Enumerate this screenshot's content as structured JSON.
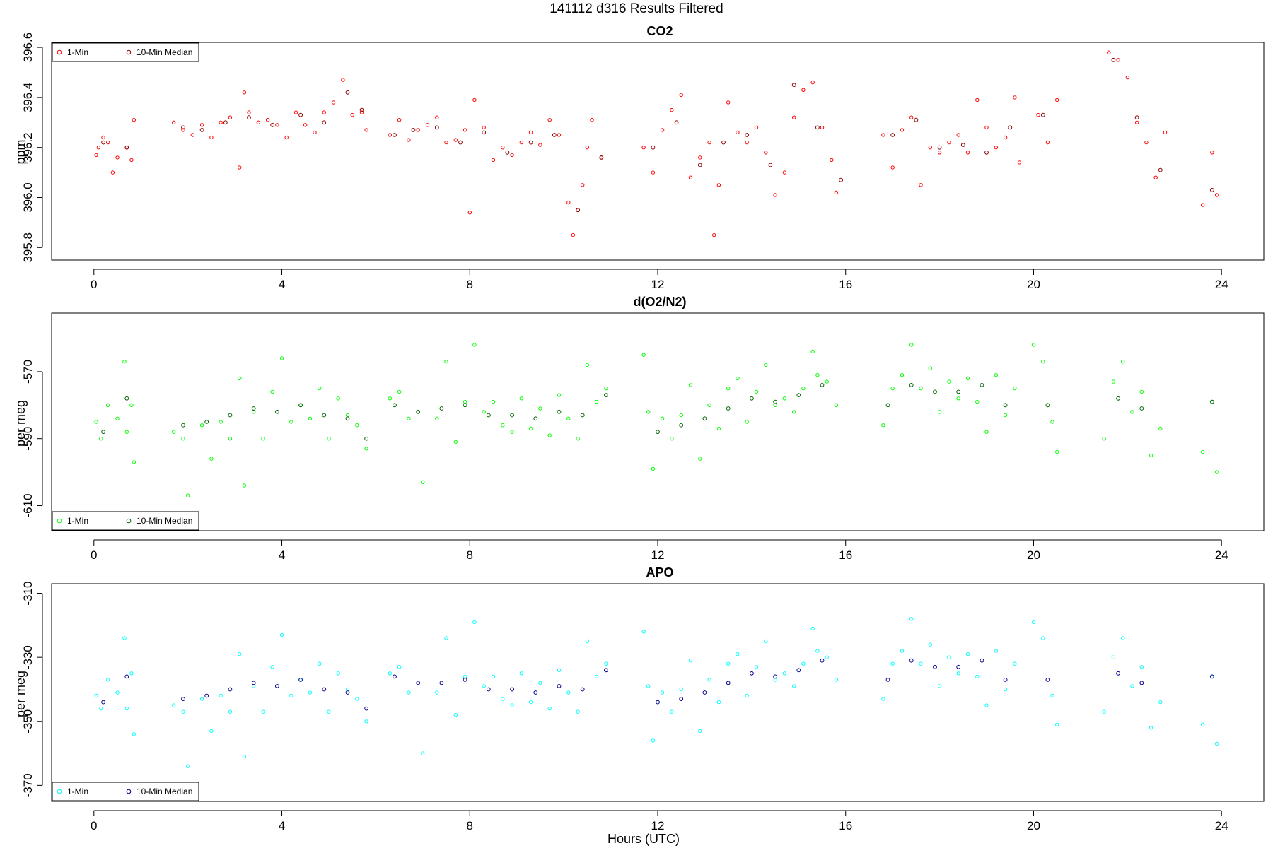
{
  "figure": {
    "title": "141112   d316   Results Filtered",
    "xlabel": "Hours (UTC)"
  },
  "chart_data": [
    {
      "type": "scatter",
      "title": "CO2",
      "xlabel": "",
      "ylabel": "ppm",
      "xlim": [
        -0.9,
        24.9
      ],
      "ylim": [
        395.75,
        396.62
      ],
      "xticks": [
        "0",
        "4",
        "8",
        "12",
        "16",
        "20",
        "24"
      ],
      "yticks": [
        "395.8",
        "396.0",
        "396.2",
        "396.4",
        "396.6"
      ],
      "legend_position": "top-left",
      "series": [
        {
          "name": "1-Min",
          "color": "#ff0000",
          "x": [
            0.05,
            0.1,
            0.2,
            0.3,
            0.4,
            0.5,
            0.7,
            0.8,
            0.85,
            1.7,
            1.9,
            2.1,
            2.3,
            2.5,
            2.7,
            2.9,
            3.1,
            3.2,
            3.3,
            3.5,
            3.7,
            3.9,
            4.1,
            4.3,
            4.5,
            4.7,
            4.9,
            5.1,
            5.3,
            5.5,
            5.7,
            5.8,
            6.3,
            6.5,
            6.7,
            6.9,
            7.1,
            7.3,
            7.5,
            7.7,
            7.9,
            8.0,
            8.1,
            8.3,
            8.5,
            8.7,
            8.9,
            9.1,
            9.3,
            9.5,
            9.7,
            9.9,
            10.1,
            10.2,
            10.3,
            10.4,
            10.5,
            10.6,
            10.8,
            11.7,
            11.9,
            12.1,
            12.3,
            12.5,
            12.7,
            12.9,
            13.1,
            13.2,
            13.3,
            13.5,
            13.7,
            13.9,
            14.1,
            14.3,
            14.5,
            14.7,
            14.9,
            15.1,
            15.3,
            15.5,
            15.7,
            15.8,
            16.8,
            17.0,
            17.2,
            17.4,
            17.6,
            17.8,
            18.0,
            18.2,
            18.4,
            18.6,
            18.8,
            19.0,
            19.2,
            19.4,
            19.6,
            19.7,
            20.1,
            20.3,
            20.5,
            21.6,
            21.8,
            22.0,
            22.2,
            22.4,
            22.6,
            22.8,
            23.6,
            23.8,
            23.9
          ],
          "y": [
            396.17,
            396.2,
            396.24,
            396.22,
            396.1,
            396.16,
            396.2,
            396.15,
            396.31,
            396.3,
            396.27,
            396.25,
            396.29,
            396.24,
            396.3,
            396.32,
            396.12,
            396.42,
            396.34,
            396.3,
            396.31,
            396.29,
            396.24,
            396.34,
            396.29,
            396.26,
            396.34,
            396.38,
            396.47,
            396.33,
            396.34,
            396.27,
            396.25,
            396.31,
            396.23,
            396.27,
            396.29,
            396.32,
            396.22,
            396.23,
            396.27,
            395.94,
            396.39,
            396.28,
            396.15,
            396.2,
            396.17,
            396.22,
            396.26,
            396.21,
            396.31,
            396.25,
            395.98,
            395.85,
            395.95,
            396.05,
            396.2,
            396.31,
            396.16,
            396.2,
            396.1,
            396.27,
            396.35,
            396.41,
            396.08,
            396.16,
            396.22,
            395.85,
            396.05,
            396.38,
            396.26,
            396.22,
            396.28,
            396.18,
            396.01,
            396.1,
            396.32,
            396.43,
            396.46,
            396.28,
            396.15,
            396.02,
            396.25,
            396.12,
            396.27,
            396.32,
            396.05,
            396.2,
            396.18,
            396.22,
            396.25,
            396.18,
            396.39,
            396.28,
            396.2,
            396.24,
            396.4,
            396.14,
            396.33,
            396.22,
            396.39,
            396.58,
            396.55,
            396.48,
            396.3,
            396.22,
            396.08,
            396.26,
            395.97,
            396.18,
            396.01
          ]
        },
        {
          "name": "10-Min Median",
          "color": "#8b0000",
          "x": [
            0.2,
            0.7,
            1.9,
            2.3,
            2.8,
            3.3,
            3.8,
            4.4,
            4.9,
            5.4,
            5.7,
            6.4,
            6.8,
            7.3,
            7.8,
            8.3,
            8.8,
            9.3,
            9.8,
            10.3,
            10.8,
            11.9,
            12.4,
            12.9,
            13.4,
            13.9,
            14.4,
            14.9,
            15.4,
            15.9,
            17.0,
            17.5,
            18.0,
            18.5,
            19.0,
            19.5,
            20.2,
            21.7,
            22.2,
            22.7,
            23.8
          ],
          "y": [
            396.22,
            396.2,
            396.28,
            396.27,
            396.3,
            396.32,
            396.29,
            396.33,
            396.3,
            396.42,
            396.35,
            396.25,
            396.27,
            396.28,
            396.22,
            396.26,
            396.18,
            396.22,
            396.25,
            395.95,
            396.16,
            396.2,
            396.3,
            396.13,
            396.22,
            396.25,
            396.13,
            396.45,
            396.28,
            396.07,
            396.25,
            396.31,
            396.2,
            396.21,
            396.18,
            396.28,
            396.33,
            396.55,
            396.32,
            396.11,
            396.03
          ]
        }
      ]
    },
    {
      "type": "scatter",
      "title": "d(O2/N2)",
      "xlabel": "",
      "ylabel": "per meg",
      "xlim": [
        -0.9,
        24.9
      ],
      "ylim": [
        -617.5,
        -552.5
      ],
      "xticks": [
        "0",
        "4",
        "8",
        "12",
        "16",
        "20",
        "24"
      ],
      "yticks": [
        "-610",
        "-590",
        "-570"
      ],
      "legend_position": "bottom-left",
      "series": [
        {
          "name": "1-Min",
          "color": "#00ff00",
          "x": [
            0.05,
            0.15,
            0.3,
            0.5,
            0.65,
            0.7,
            0.8,
            0.85,
            1.7,
            1.9,
            2.0,
            2.3,
            2.5,
            2.7,
            2.9,
            3.1,
            3.2,
            3.4,
            3.6,
            3.8,
            4.0,
            4.2,
            4.4,
            4.6,
            4.8,
            5.0,
            5.2,
            5.4,
            5.6,
            5.8,
            6.3,
            6.5,
            6.7,
            7.0,
            7.3,
            7.5,
            7.7,
            7.9,
            8.1,
            8.3,
            8.5,
            8.7,
            8.9,
            9.1,
            9.3,
            9.5,
            9.7,
            9.9,
            10.1,
            10.3,
            10.5,
            10.7,
            10.9,
            11.7,
            11.8,
            11.9,
            12.1,
            12.3,
            12.5,
            12.7,
            12.9,
            13.1,
            13.3,
            13.5,
            13.7,
            13.9,
            14.1,
            14.3,
            14.5,
            14.7,
            14.9,
            15.1,
            15.3,
            15.4,
            15.6,
            15.8,
            16.8,
            17.0,
            17.2,
            17.4,
            17.6,
            17.8,
            18.0,
            18.2,
            18.4,
            18.6,
            18.8,
            19.0,
            19.2,
            19.4,
            19.6,
            20.0,
            20.2,
            20.4,
            20.5,
            21.5,
            21.7,
            21.9,
            22.1,
            22.3,
            22.5,
            22.7,
            23.6,
            23.8,
            23.9
          ],
          "y": [
            -585,
            -590,
            -580,
            -584,
            -567,
            -588,
            -580,
            -597,
            -588,
            -590,
            -607,
            -586,
            -596,
            -585,
            -590,
            -572,
            -604,
            -582,
            -590,
            -576,
            -566,
            -585,
            -580,
            -584,
            -575,
            -590,
            -578,
            -583,
            -586,
            -593,
            -578,
            -576,
            -584,
            -603,
            -584,
            -567,
            -591,
            -579,
            -562,
            -582,
            -579,
            -586,
            -588,
            -578,
            -587,
            -581,
            -589,
            -577,
            -584,
            -590,
            -568,
            -579,
            -575,
            -565,
            -582,
            -599,
            -584,
            -590,
            -583,
            -574,
            -596,
            -580,
            -587,
            -575,
            -572,
            -585,
            -576,
            -568,
            -580,
            -578,
            -582,
            -575,
            -564,
            -571,
            -573,
            -580,
            -586,
            -575,
            -571,
            -562,
            -575,
            -569,
            -582,
            -573,
            -578,
            -572,
            -579,
            -588,
            -571,
            -583,
            -575,
            -562,
            -567,
            -585,
            -594,
            -590,
            -573,
            -567,
            -582,
            -576,
            -595,
            -587,
            -594,
            -579,
            -600
          ]
        },
        {
          "name": "10-Min Median",
          "color": "#006400",
          "x": [
            0.2,
            0.7,
            1.9,
            2.4,
            2.9,
            3.4,
            3.9,
            4.4,
            4.9,
            5.4,
            5.8,
            6.4,
            6.9,
            7.4,
            7.9,
            8.4,
            8.9,
            9.4,
            9.9,
            10.4,
            10.9,
            12.0,
            12.5,
            13.0,
            13.5,
            14.0,
            14.5,
            15.0,
            15.5,
            16.9,
            17.4,
            17.9,
            18.4,
            18.9,
            19.4,
            20.3,
            21.8,
            22.3,
            23.8
          ],
          "y": [
            -588,
            -578,
            -586,
            -585,
            -583,
            -581,
            -582,
            -580,
            -583,
            -584,
            -590,
            -580,
            -582,
            -581,
            -580,
            -583,
            -583,
            -584,
            -582,
            -583,
            -577,
            -588,
            -586,
            -584,
            -581,
            -578,
            -579,
            -577,
            -574,
            -580,
            -574,
            -576,
            -576,
            -574,
            -580,
            -580,
            -578,
            -581,
            -579
          ]
        }
      ]
    },
    {
      "type": "scatter",
      "title": "APO",
      "xlabel": "Hours (UTC)",
      "ylabel": "per meg",
      "xlim": [
        -0.9,
        24.9
      ],
      "ylim": [
        -375,
        -307
      ],
      "xticks": [
        "0",
        "4",
        "8",
        "12",
        "16",
        "20",
        "24"
      ],
      "yticks": [
        "-370",
        "-350",
        "-330",
        "-310"
      ],
      "legend_position": "bottom-left",
      "series": [
        {
          "name": "1-Min",
          "color": "#00ffff",
          "x": [
            0.05,
            0.15,
            0.3,
            0.5,
            0.65,
            0.7,
            0.8,
            0.85,
            1.7,
            1.9,
            2.0,
            2.3,
            2.5,
            2.7,
            2.9,
            3.1,
            3.2,
            3.4,
            3.6,
            3.8,
            4.0,
            4.2,
            4.4,
            4.6,
            4.8,
            5.0,
            5.2,
            5.4,
            5.6,
            5.8,
            6.3,
            6.5,
            6.7,
            7.0,
            7.3,
            7.5,
            7.7,
            7.9,
            8.1,
            8.3,
            8.5,
            8.7,
            8.9,
            9.1,
            9.3,
            9.5,
            9.7,
            9.9,
            10.1,
            10.3,
            10.5,
            10.7,
            10.9,
            11.7,
            11.8,
            11.9,
            12.1,
            12.3,
            12.5,
            12.7,
            12.9,
            13.1,
            13.3,
            13.5,
            13.7,
            13.9,
            14.1,
            14.3,
            14.5,
            14.7,
            14.9,
            15.1,
            15.3,
            15.4,
            15.6,
            15.8,
            16.8,
            17.0,
            17.2,
            17.4,
            17.6,
            17.8,
            18.0,
            18.2,
            18.4,
            18.6,
            18.8,
            19.0,
            19.2,
            19.4,
            19.6,
            20.0,
            20.2,
            20.4,
            20.5,
            21.5,
            21.7,
            21.9,
            22.1,
            22.3,
            22.5,
            22.7,
            23.6,
            23.8,
            23.9
          ],
          "y": [
            -342,
            -346,
            -337,
            -341,
            -324,
            -346,
            -335,
            -354,
            -345,
            -347,
            -364,
            -343,
            -353,
            -342,
            -347,
            -329,
            -361,
            -339,
            -347,
            -333,
            -323,
            -342,
            -337,
            -341,
            -332,
            -347,
            -335,
            -340,
            -343,
            -350,
            -335,
            -333,
            -341,
            -360,
            -341,
            -324,
            -348,
            -336,
            -319,
            -339,
            -336,
            -343,
            -345,
            -335,
            -344,
            -338,
            -346,
            -334,
            -341,
            -347,
            -325,
            -336,
            -332,
            -322,
            -339,
            -356,
            -341,
            -347,
            -340,
            -331,
            -353,
            -337,
            -344,
            -332,
            -329,
            -342,
            -333,
            -325,
            -337,
            -335,
            -339,
            -332,
            -321,
            -328,
            -330,
            -337,
            -343,
            -332,
            -328,
            -318,
            -332,
            -326,
            -339,
            -330,
            -335,
            -329,
            -336,
            -345,
            -328,
            -340,
            -332,
            -319,
            -324,
            -342,
            -351,
            -347,
            -330,
            -324,
            -339,
            -333,
            -352,
            -344,
            -351,
            -336,
            -357
          ]
        },
        {
          "name": "10-Min Median",
          "color": "#00008b",
          "x": [
            0.2,
            0.7,
            1.9,
            2.4,
            2.9,
            3.4,
            3.9,
            4.4,
            4.9,
            5.4,
            5.8,
            6.4,
            6.9,
            7.4,
            7.9,
            8.4,
            8.9,
            9.4,
            9.9,
            10.4,
            10.9,
            12.0,
            12.5,
            13.0,
            13.5,
            14.0,
            14.5,
            15.0,
            15.5,
            16.9,
            17.4,
            17.9,
            18.4,
            18.9,
            19.4,
            20.3,
            21.8,
            22.3,
            23.8
          ],
          "y": [
            -344,
            -336,
            -343,
            -342,
            -340,
            -338,
            -339,
            -337,
            -340,
            -341,
            -346,
            -336,
            -338,
            -338,
            -337,
            -340,
            -340,
            -341,
            -339,
            -340,
            -334,
            -344,
            -343,
            -341,
            -338,
            -335,
            -336,
            -334,
            -331,
            -337,
            -331,
            -333,
            -333,
            -331,
            -337,
            -337,
            -335,
            -338,
            -336
          ]
        }
      ]
    }
  ]
}
